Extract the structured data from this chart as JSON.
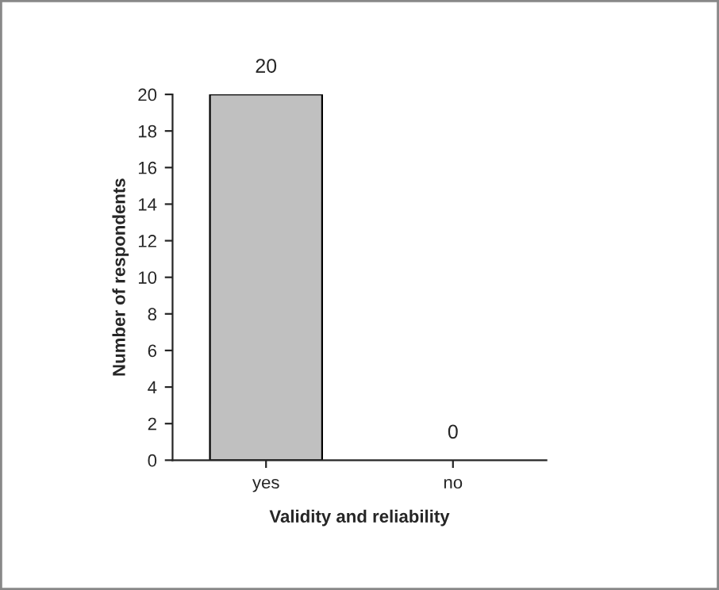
{
  "chart_data": {
    "type": "bar",
    "xlabel": "Validity and reliability",
    "ylabel": "Number of respondents",
    "categories": [
      "yes",
      "no"
    ],
    "values": [
      20,
      0
    ],
    "color": "#c0c0c0",
    "ylim": [
      0,
      20
    ],
    "yticks": [
      0,
      2,
      4,
      6,
      8,
      10,
      12,
      14,
      16,
      18,
      20
    ],
    "data_labels": true,
    "grid": false
  }
}
